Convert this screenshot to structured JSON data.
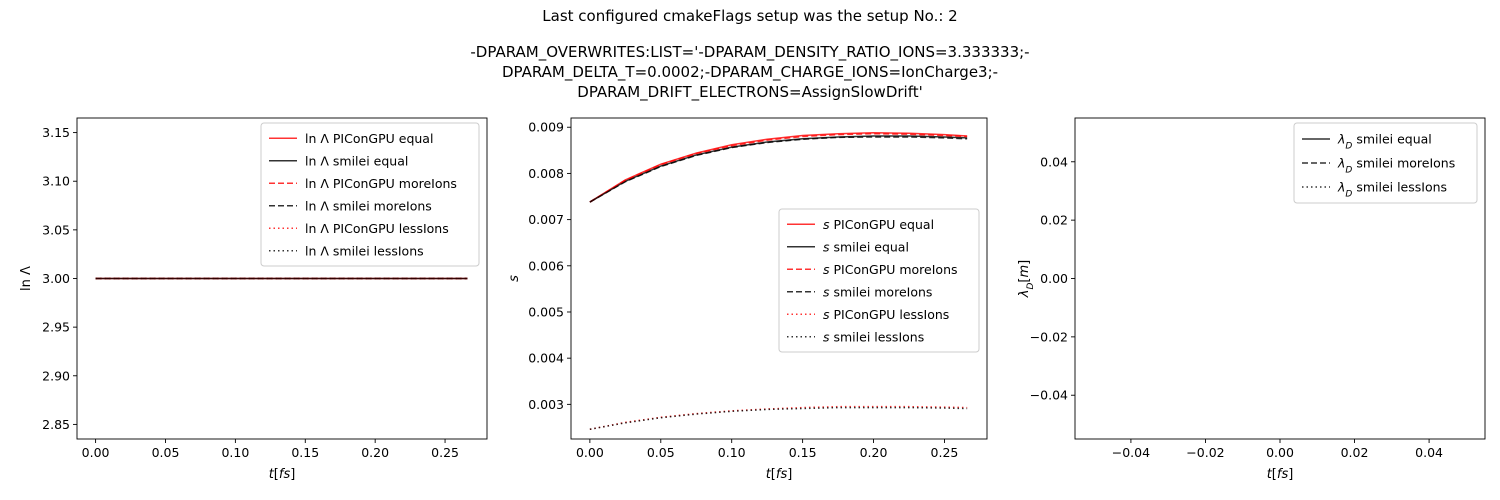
{
  "figure": {
    "title_line1": "Last configured cmakeFlags setup was the setup No.: 2",
    "title_line2": "-DPARAM_OVERWRITES:LIST='-DPARAM_DENSITY_RATIO_IONS=3.333333;-",
    "title_line3": "DPARAM_DELTA_T=0.0002;-DPARAM_CHARGE_IONS=IonCharge3;-",
    "title_line4": "DPARAM_DRIFT_ELECTRONS=AssignSlowDrift'"
  },
  "colors": {
    "piconGPU": "#ff0000",
    "smilei": "#000000",
    "axis": "#000000"
  },
  "chart_data": [
    {
      "type": "line",
      "xlabel": "t[fs]",
      "ylabel": "ln Λ",
      "xlim": [
        -0.0133,
        0.28
      ],
      "ylim": [
        2.835,
        3.165
      ],
      "xticks": [
        0.0,
        0.05,
        0.1,
        0.15,
        0.2,
        0.25
      ],
      "xtick_labels": [
        "0.00",
        "0.05",
        "0.10",
        "0.15",
        "0.20",
        "0.25"
      ],
      "yticks": [
        2.85,
        2.9,
        2.95,
        3.0,
        3.05,
        3.1,
        3.15
      ],
      "ytick_labels": [
        "2.85",
        "2.90",
        "2.95",
        "3.00",
        "3.05",
        "3.10",
        "3.15"
      ],
      "legend": "top-right",
      "x": [
        0.0,
        0.0266,
        0.0532,
        0.0798,
        0.1064,
        0.133,
        0.1596,
        0.1862,
        0.2128,
        0.2394,
        0.266
      ],
      "series": [
        {
          "name": "ln Λ PIConGPU equal",
          "style": "solid",
          "color": "#ff0000",
          "values": [
            3.0,
            3.0,
            3.0,
            3.0,
            3.0,
            3.0,
            3.0,
            3.0,
            3.0,
            3.0,
            3.0
          ]
        },
        {
          "name": "ln Λ smilei equal",
          "style": "solid",
          "color": "#000000",
          "values": [
            3.0,
            3.0,
            3.0,
            3.0,
            3.0,
            3.0,
            3.0,
            3.0,
            3.0,
            3.0,
            3.0
          ]
        },
        {
          "name": "ln Λ PIConGPU moreIons",
          "style": "dashed",
          "color": "#ff0000",
          "values": [
            3.0,
            3.0,
            3.0,
            3.0,
            3.0,
            3.0,
            3.0,
            3.0,
            3.0,
            3.0,
            3.0
          ]
        },
        {
          "name": "ln Λ smilei moreIons",
          "style": "dashed",
          "color": "#000000",
          "values": [
            3.0,
            3.0,
            3.0,
            3.0,
            3.0,
            3.0,
            3.0,
            3.0,
            3.0,
            3.0,
            3.0
          ]
        },
        {
          "name": "ln Λ PIConGPU lessIons",
          "style": "dotted",
          "color": "#ff0000",
          "values": [
            3.0,
            3.0,
            3.0,
            3.0,
            3.0,
            3.0,
            3.0,
            3.0,
            3.0,
            3.0,
            3.0
          ]
        },
        {
          "name": "ln Λ smilei lessIons",
          "style": "dotted",
          "color": "#000000",
          "values": [
            3.0,
            3.0,
            3.0,
            3.0,
            3.0,
            3.0,
            3.0,
            3.0,
            3.0,
            3.0,
            3.0
          ]
        }
      ]
    },
    {
      "type": "line",
      "xlabel": "t[fs]",
      "ylabel": "s",
      "xlim": [
        -0.0133,
        0.28
      ],
      "ylim": [
        0.00225,
        0.0092
      ],
      "xticks": [
        0.0,
        0.05,
        0.1,
        0.15,
        0.2,
        0.25
      ],
      "xtick_labels": [
        "0.00",
        "0.05",
        "0.10",
        "0.15",
        "0.20",
        "0.25"
      ],
      "yticks": [
        0.003,
        0.004,
        0.005,
        0.006,
        0.007,
        0.008,
        0.009
      ],
      "ytick_labels": [
        "0.003",
        "0.004",
        "0.005",
        "0.006",
        "0.007",
        "0.008",
        "0.009"
      ],
      "legend": "center-right",
      "x": [
        0.0,
        0.025,
        0.05,
        0.075,
        0.1,
        0.125,
        0.15,
        0.175,
        0.2,
        0.225,
        0.25,
        0.266
      ],
      "series": [
        {
          "name": "s PIConGPU equal",
          "style": "solid",
          "color": "#ff0000",
          "values": [
            0.00738,
            0.00786,
            0.0082,
            0.00844,
            0.00862,
            0.00874,
            0.00882,
            0.00886,
            0.00888,
            0.00887,
            0.00884,
            0.00881
          ]
        },
        {
          "name": "s smilei equal",
          "style": "solid",
          "color": "#000000",
          "values": [
            0.00738,
            0.00783,
            0.00816,
            0.0084,
            0.00857,
            0.00868,
            0.00875,
            0.00879,
            0.00881,
            0.00881,
            0.00879,
            0.00877
          ]
        },
        {
          "name": "s PIConGPU moreIons",
          "style": "dashed",
          "color": "#ff0000",
          "values": [
            0.00738,
            0.00785,
            0.00819,
            0.00843,
            0.0086,
            0.00872,
            0.0088,
            0.00884,
            0.00886,
            0.00885,
            0.00882,
            0.0088
          ]
        },
        {
          "name": "s smilei moreIons",
          "style": "dashed",
          "color": "#000000",
          "values": [
            0.00738,
            0.00782,
            0.00815,
            0.00839,
            0.00856,
            0.00867,
            0.00874,
            0.00878,
            0.00879,
            0.00879,
            0.00877,
            0.00875
          ]
        },
        {
          "name": "s PIConGPU lessIons",
          "style": "dotted",
          "color": "#ff0000",
          "values": [
            0.00246,
            0.00261,
            0.00272,
            0.0028,
            0.00286,
            0.0029,
            0.00293,
            0.00295,
            0.00295,
            0.00295,
            0.00294,
            0.00293
          ]
        },
        {
          "name": "s smilei lessIons",
          "style": "dotted",
          "color": "#000000",
          "values": [
            0.00246,
            0.0026,
            0.00271,
            0.00279,
            0.00285,
            0.00289,
            0.00291,
            0.00293,
            0.00293,
            0.00293,
            0.00292,
            0.00291
          ]
        }
      ]
    },
    {
      "type": "line",
      "xlabel": "t[fs]",
      "ylabel": "λD[m]",
      "xlim": [
        -0.055,
        0.055
      ],
      "ylim": [
        -0.055,
        0.055
      ],
      "xticks": [
        -0.04,
        -0.02,
        0.0,
        0.02,
        0.04
      ],
      "xtick_labels": [
        "−0.04",
        "−0.02",
        "0.00",
        "0.02",
        "0.04"
      ],
      "yticks": [
        -0.04,
        -0.02,
        0.0,
        0.02,
        0.04
      ],
      "ytick_labels": [
        "−0.04",
        "−0.02",
        "0.00",
        "0.02",
        "0.04"
      ],
      "legend": "top-right",
      "x": [],
      "series": [
        {
          "name": "λD smilei equal",
          "style": "solid",
          "color": "#000000",
          "values": []
        },
        {
          "name": "λD smilei moreIons",
          "style": "dashed",
          "color": "#000000",
          "values": []
        },
        {
          "name": "λD smilei lessIons",
          "style": "dotted",
          "color": "#000000",
          "values": []
        }
      ]
    }
  ]
}
